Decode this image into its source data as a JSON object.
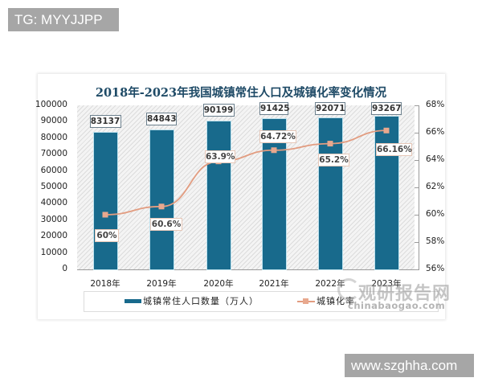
{
  "watermarks": {
    "top_left_badge": "TG: MYYJJPP",
    "bottom_right_badge": "www.szghha.com",
    "source_logo_cn": "观研报告网",
    "source_logo_en": "chinabaogao.com"
  },
  "colors": {
    "bar": "#186a8c",
    "line": "#e29c80",
    "marker": "#e8a88e",
    "title": "#1e4a66"
  },
  "chart_data": {
    "type": "bar+line",
    "title": "2018年-2023年我国城镇常住人口及城镇化率变化情况",
    "categories": [
      "2018年",
      "2019年",
      "2020年",
      "2021年",
      "2022年",
      "2023年"
    ],
    "series": [
      {
        "name": "城镇常住人口数量（万人）",
        "type": "bar",
        "axis": "left",
        "values": [
          83137,
          84843,
          90199,
          91425,
          92071,
          93267
        ],
        "labels": [
          "83137",
          "84843",
          "90199",
          "91425",
          "92071",
          "93267"
        ]
      },
      {
        "name": "城镇化率",
        "type": "line",
        "axis": "right",
        "values": [
          60,
          60.6,
          63.9,
          64.72,
          65.2,
          66.16
        ],
        "labels": [
          "60%",
          "60.6%",
          "63.9%",
          "64.72%",
          "65.2%",
          "66.16%"
        ]
      }
    ],
    "left_axis": {
      "ylim": [
        0,
        100000
      ],
      "ticks": [
        "100000",
        "90000",
        "80000",
        "70000",
        "60000",
        "50000",
        "40000",
        "30000",
        "20000",
        "10000",
        "0"
      ]
    },
    "right_axis": {
      "ylim": [
        56,
        68
      ],
      "ticks": [
        "68%",
        "66%",
        "64%",
        "62%",
        "60%",
        "58%",
        "56%"
      ]
    },
    "xlabel": "",
    "ylabel": "",
    "legend_position": "bottom",
    "grid": false
  }
}
